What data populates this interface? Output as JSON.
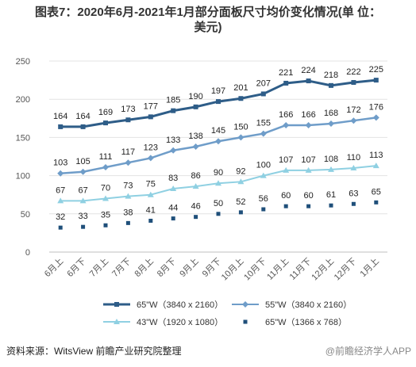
{
  "chart_data": {
    "type": "line",
    "title_line1": "图表7：2020年6月-2021年1月部分面板尺寸均价变化情况(单 位：",
    "title_line2": "美元)",
    "categories": [
      "6月上",
      "6月下",
      "7月上",
      "7月下",
      "8月上",
      "8月下",
      "9月上",
      "9月下",
      "10月上",
      "10月下",
      "11月上",
      "11月下",
      "12月上",
      "12月下",
      "1月上"
    ],
    "ylim": [
      0,
      250
    ],
    "yticks": [
      "0",
      "50",
      "100",
      "150",
      "200",
      "250"
    ],
    "grid": true,
    "legend_position": "bottom",
    "series": [
      {
        "name": "65\"W（3840 x 2160）",
        "color": "#2e5d88",
        "marker": "square",
        "values": [
          164,
          164,
          169,
          173,
          177,
          185,
          190,
          197,
          201,
          207,
          221,
          224,
          218,
          222,
          225
        ]
      },
      {
        "name": "55\"W（3840 x 2160）",
        "color": "#6f9dc9",
        "marker": "diamond",
        "values": [
          103,
          105,
          111,
          117,
          123,
          133,
          138,
          145,
          150,
          155,
          166,
          166,
          168,
          172,
          176
        ]
      },
      {
        "name": "43\"W（1920 x 1080）",
        "color": "#8fd0e2",
        "marker": "triangle",
        "values": [
          67,
          67,
          70,
          73,
          75,
          83,
          86,
          90,
          92,
          100,
          107,
          107,
          108,
          110,
          113
        ]
      },
      {
        "name": "65\"W（1366 x 768）",
        "color": "#1f4f7a",
        "marker": "square-only",
        "values": [
          32,
          33,
          35,
          38,
          41,
          44,
          46,
          50,
          52,
          56,
          60,
          60,
          61,
          63,
          65
        ]
      }
    ]
  },
  "footer": {
    "source": "资料来源：WitsView 前瞻产业研究院整理",
    "watermark": "@前瞻经济学人APP"
  }
}
